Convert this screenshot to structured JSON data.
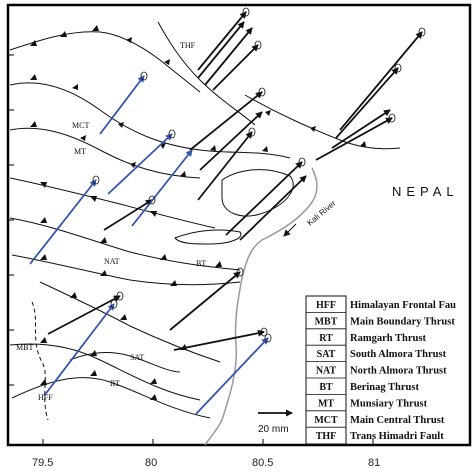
{
  "map": {
    "country_label": "NEPAL",
    "river_label": "Kali River",
    "x_ticks": [
      "79.5",
      "80",
      "80.5",
      "81"
    ],
    "fault_labels": {
      "thf": "THF",
      "mct": "MCT",
      "mt": "MT",
      "nat": "NAT",
      "bt": "BT",
      "sat": "SAT",
      "rt": "RT",
      "mbt": "MBT",
      "hff": "HFF"
    },
    "scale": {
      "label": "20 mm"
    },
    "colors": {
      "black_vector": "#111111",
      "blue_vector": "#3355aa",
      "river": "#999999"
    }
  },
  "legend": [
    {
      "abbr": "HFF",
      "name": "Himalayan Frontal Fau"
    },
    {
      "abbr": "MBT",
      "name": "Main Boundary Thrust"
    },
    {
      "abbr": "RT",
      "name": "Ramgarh Thrust"
    },
    {
      "abbr": "SAT",
      "name": "South Almora Thrust"
    },
    {
      "abbr": "NAT",
      "name": "North Almora Thrust"
    },
    {
      "abbr": "BT",
      "name": "Berinag Thrust"
    },
    {
      "abbr": "MT",
      "name": "Munsiary Thrust"
    },
    {
      "abbr": "MCT",
      "name": "Main Central Thrust"
    },
    {
      "abbr": "THF",
      "name": "Trans Himadri Fault"
    }
  ]
}
